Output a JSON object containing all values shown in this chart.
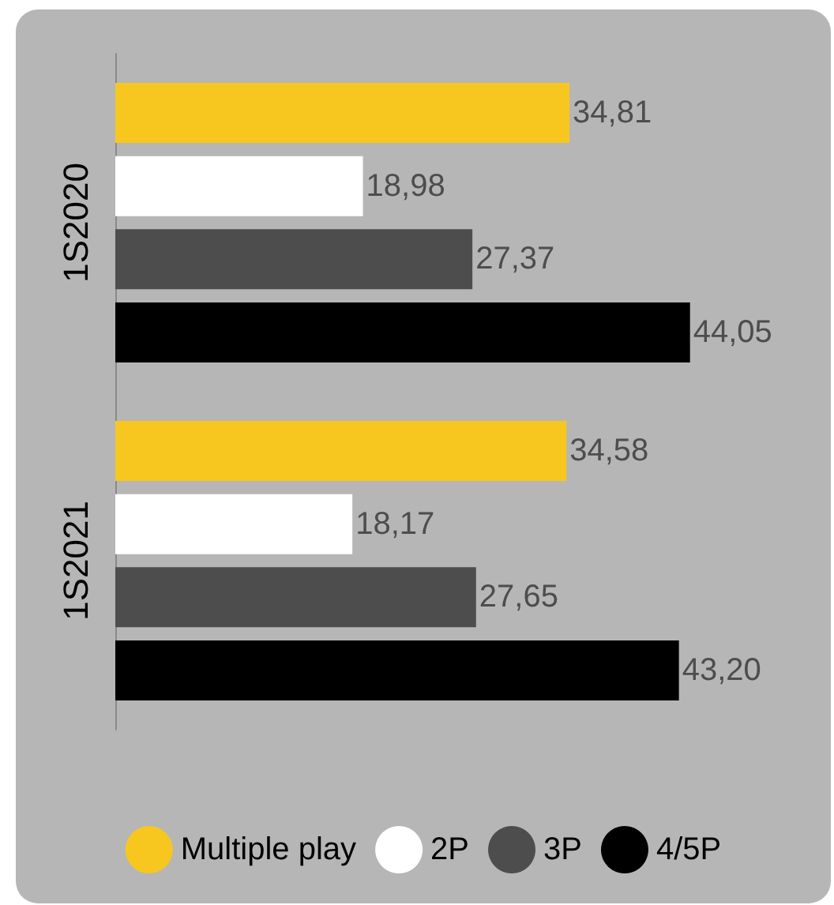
{
  "chart_data": {
    "type": "bar",
    "orientation": "horizontal",
    "categories": [
      "1S2020",
      "1S2021"
    ],
    "legend": "bottom",
    "grid": false,
    "series": [
      {
        "name": "Multiple play",
        "color": "#f7c71f",
        "values": [
          34.81,
          34.58
        ],
        "value_labels": [
          "34,81",
          "34,58"
        ]
      },
      {
        "name": "2P",
        "color": "#ffffff",
        "values": [
          18.98,
          18.17
        ],
        "value_labels": [
          "18,98",
          "18,17"
        ]
      },
      {
        "name": "3P",
        "color": "#4d4d4d",
        "values": [
          27.37,
          27.65
        ],
        "value_labels": [
          "27,37",
          "27,65"
        ]
      },
      {
        "name": "4/5P",
        "color": "#000000",
        "values": [
          44.05,
          43.2
        ],
        "value_labels": [
          "44,05",
          "43,20"
        ]
      }
    ]
  }
}
